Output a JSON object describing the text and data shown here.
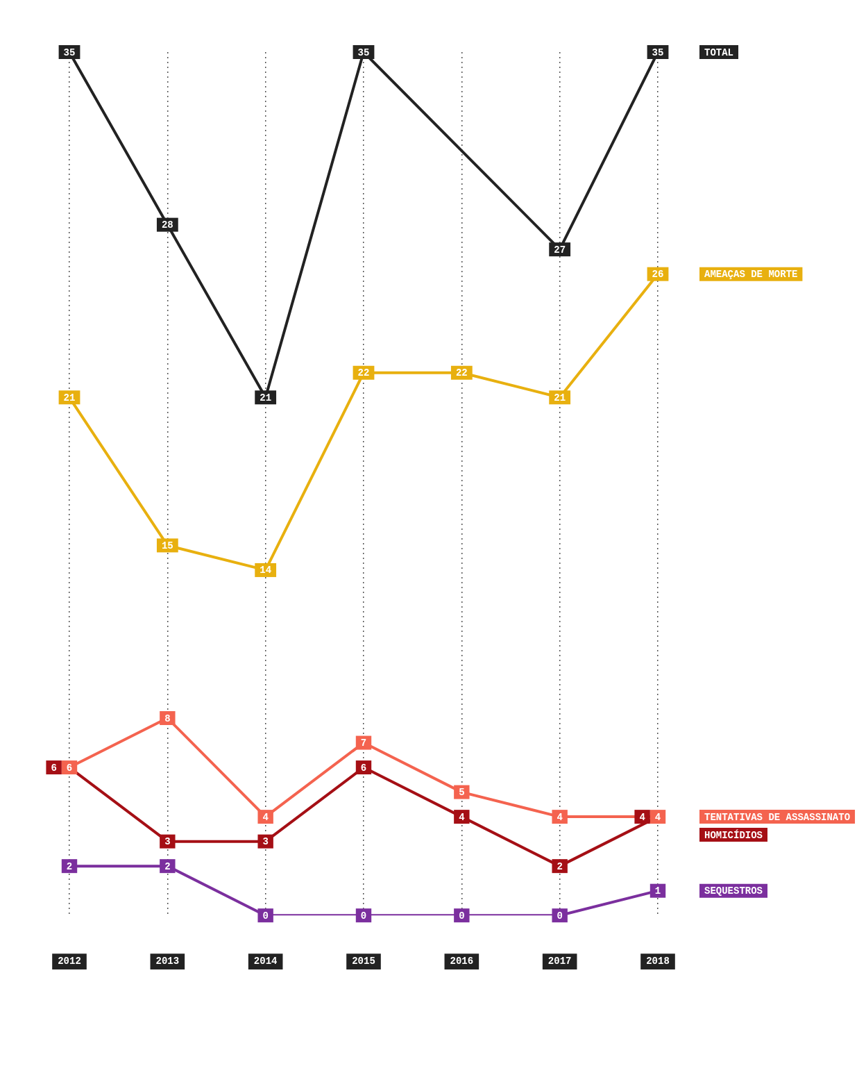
{
  "chart_data": {
    "type": "line",
    "categories": [
      "2012",
      "2013",
      "2014",
      "2015",
      "2016",
      "2017",
      "2018"
    ],
    "series": [
      {
        "name": "TOTAL",
        "color": "#222222",
        "values": [
          35,
          28,
          21,
          35,
          31,
          27,
          35
        ],
        "value_labels": [
          "35",
          "28",
          "21",
          "35",
          null,
          "27",
          "35"
        ]
      },
      {
        "name": "AMEAÇAS DE MORTE",
        "color": "#e8b00f",
        "values": [
          21,
          15,
          14,
          22,
          22,
          21,
          26
        ],
        "value_labels": [
          "21",
          "15",
          "14",
          "22",
          "22",
          "21",
          "26"
        ]
      },
      {
        "name": "TENTATIVAS DE ASSASSINATO",
        "color": "#f4634f",
        "values": [
          6,
          8,
          4,
          7,
          5,
          4,
          4
        ],
        "value_labels": [
          "6",
          "8",
          "4",
          "7",
          "5",
          "4",
          "4"
        ]
      },
      {
        "name": "HOMICÍDIOS",
        "color": "#a50f15",
        "values": [
          6,
          3,
          3,
          6,
          4,
          2,
          4
        ],
        "value_labels": [
          "6",
          "3",
          "3",
          "6",
          "4",
          "2",
          "4"
        ]
      },
      {
        "name": "SEQUESTROS",
        "color": "#7b2f9e",
        "values": [
          2,
          2,
          0,
          0,
          0,
          0,
          1
        ],
        "value_labels": [
          "2",
          "2",
          "0",
          "0",
          "0",
          "0",
          "1"
        ]
      }
    ],
    "ylim": [
      0,
      35
    ],
    "grid": "x",
    "legend": false,
    "marker": "square",
    "line_style": "solid",
    "tick_labels": "x"
  }
}
